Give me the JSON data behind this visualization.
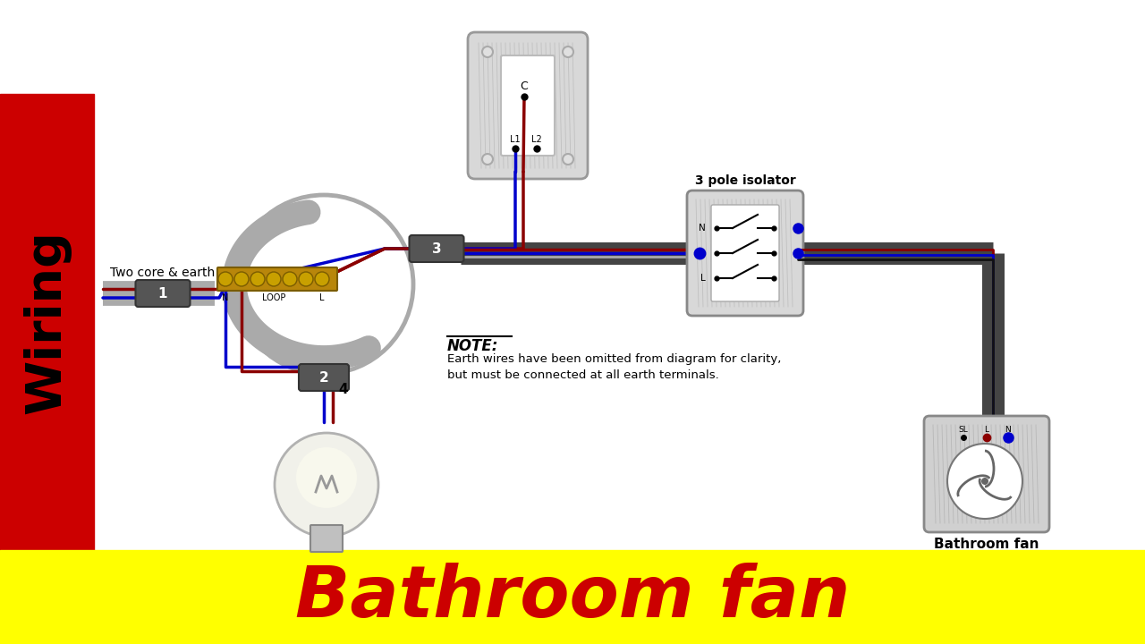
{
  "sidebar_bg": "#cc0000",
  "bottom_bg": "#ffff00",
  "bottom_text": "Bathroom fan",
  "bottom_text_color": "#cc0000",
  "sidebar_text": "Wiring",
  "main_bg": "#ffffff",
  "wire_brown": "#8B0000",
  "wire_blue": "#0000cc",
  "wire_gray": "#aaaaaa",
  "cable_sheath": "#444444",
  "label_two_core": "Two core & earth",
  "label_3pole": "3 pole isolator",
  "label_fan": "Bathroom fan",
  "note_title": "NOTE:",
  "note_line1": "Earth wires have been omitted from diagram for clarity,",
  "note_line2": "but must be connected at all earth terminals."
}
